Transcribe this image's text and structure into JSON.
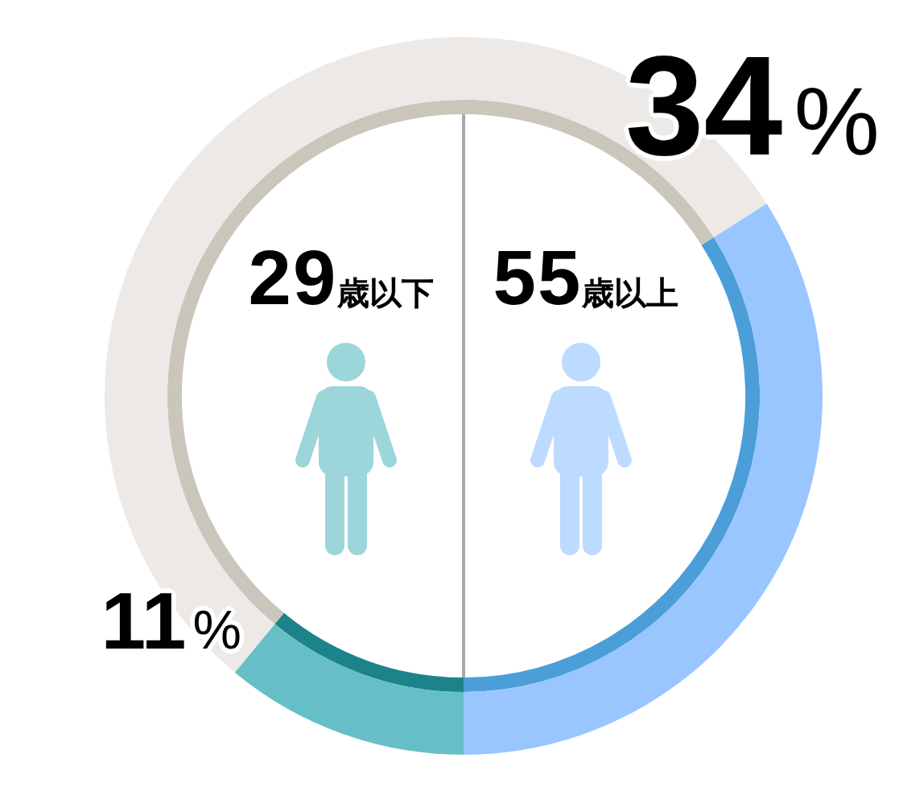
{
  "chart_data": {
    "type": "donut",
    "categories": [
      null,
      null,
      null
    ],
    "series": [
      {
        "values": [
          34,
          11,
          55
        ],
        "colors": [
          "#4c9ed8",
          "#1c838a",
          "#cac6bc"
        ]
      },
      {
        "values": [
          34,
          11,
          55
        ],
        "colors": [
          "#99c6ff",
          "#66bfc6",
          "#ece9e6"
        ],
        "value_labels": [
          "34%",
          "11%",
          null
        ]
      }
    ],
    "annotations": [
      "29歳以下",
      "55歳以上"
    ]
  }
}
